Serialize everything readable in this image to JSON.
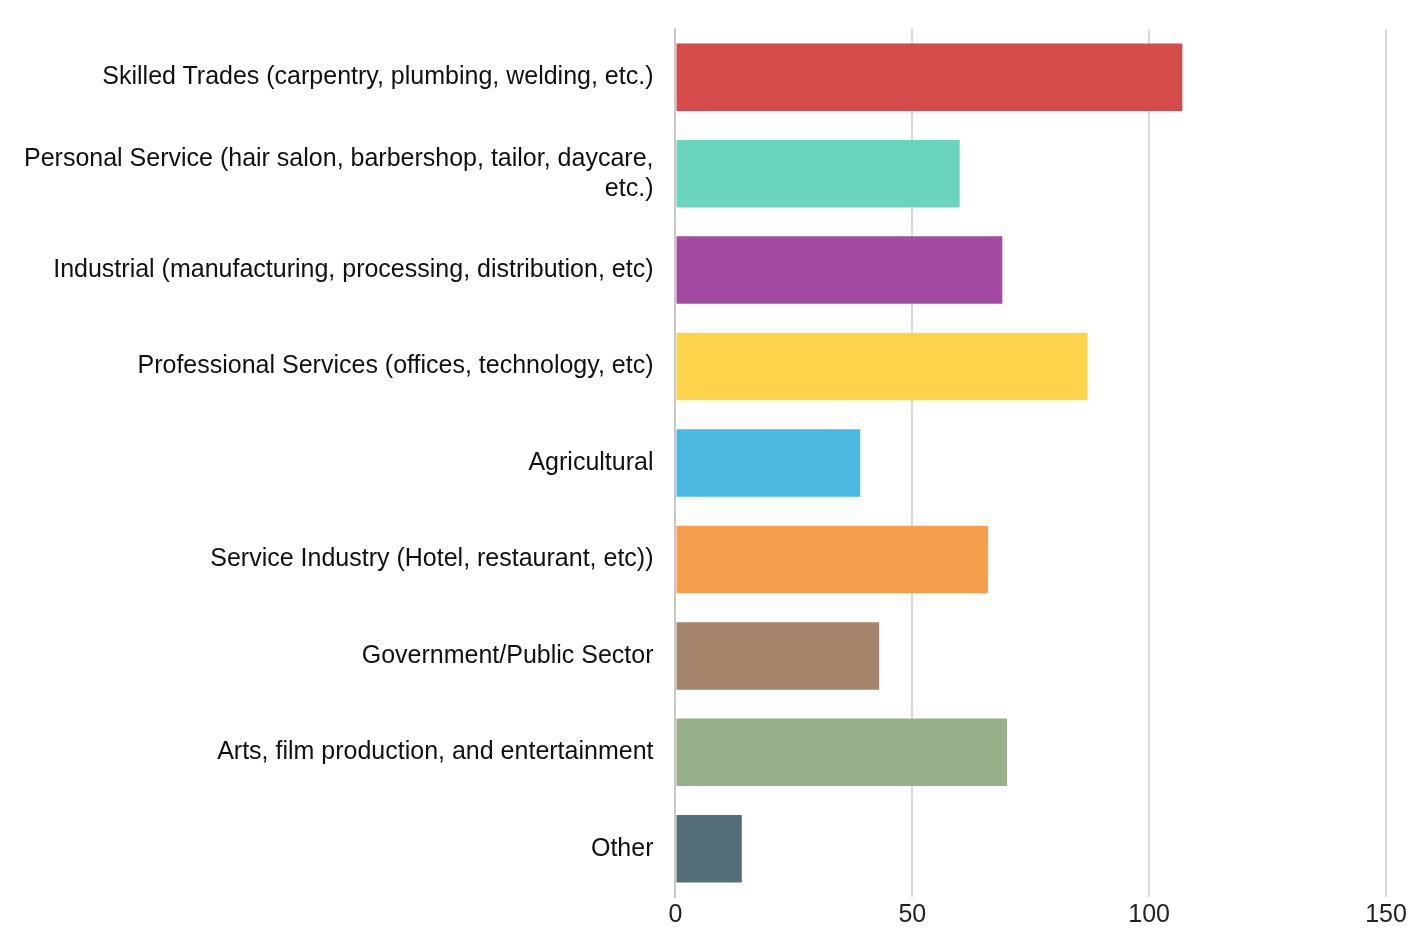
{
  "chart_data": {
    "type": "bar",
    "orientation": "horizontal",
    "categories": [
      "Skilled Trades (carpentry, plumbing, welding, etc.)",
      "Personal Service (hair salon, barbershop, tailor, daycare, etc.)",
      "Industrial (manufacturing, processing, distribution, etc)",
      "Professional Services (offices, technology, etc)",
      "Agricultural",
      "Service Industry (Hotel, restaurant, etc))",
      "Government/Public Sector",
      "Arts, film production, and entertainment",
      "Other"
    ],
    "values": [
      107,
      60,
      69,
      87,
      39,
      66,
      43,
      70,
      14
    ],
    "colors": [
      "#d54b4b",
      "#6ad5bc",
      "#a34ba3",
      "#fcd34b",
      "#4bb9e2",
      "#f59e4e",
      "#a4846b",
      "#95b08a",
      "#546e78"
    ],
    "xlim": [
      0,
      150
    ],
    "xticks": [
      0,
      50,
      100,
      150
    ],
    "grid": "x",
    "legend": false
  }
}
